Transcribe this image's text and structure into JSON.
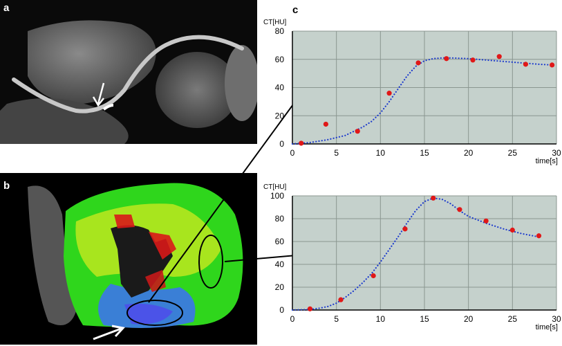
{
  "panels": {
    "a": {
      "label": "a"
    },
    "b": {
      "label": "b"
    },
    "c": {
      "label": "c"
    }
  },
  "colors": {
    "plot_bg": "#c5d1cc",
    "grid": "#8a9690",
    "curve": "#1e3ccc",
    "points": "#e01818",
    "arrow": "#000000"
  },
  "chart_data": [
    {
      "type": "scatter",
      "title": "",
      "ylabel": "CT[HU]",
      "xlabel": "time[s]",
      "xlim": [
        0,
        30
      ],
      "ylim": [
        0,
        80
      ],
      "xticks": [
        0,
        5,
        10,
        15,
        20,
        25,
        30
      ],
      "yticks": [
        0,
        20,
        40,
        60,
        80
      ],
      "grid": true,
      "series": [
        {
          "style": "red-dots",
          "x": [
            1,
            3.8,
            7.4,
            11,
            14.3,
            17.5,
            20.5,
            23.5,
            26.5,
            29.5
          ],
          "y": [
            0.5,
            14,
            9,
            36,
            57.5,
            60.5,
            59.5,
            62,
            56.5,
            56
          ]
        },
        {
          "style": "blue-dotted-fit",
          "x": [
            0,
            2,
            4,
            6,
            8,
            9,
            10,
            11,
            12,
            13,
            14,
            15,
            16,
            17,
            18,
            20,
            22,
            24,
            26,
            28,
            29.5
          ],
          "y": [
            0,
            1,
            3,
            6,
            12,
            16,
            22,
            30,
            39,
            48,
            55,
            59,
            60.5,
            61,
            61,
            60.5,
            59.5,
            58.5,
            57.5,
            56.5,
            56
          ]
        }
      ]
    },
    {
      "type": "scatter",
      "title": "",
      "ylabel": "CT[HU]",
      "xlabel": "time[s]",
      "xlim": [
        0,
        30
      ],
      "ylim": [
        0,
        100
      ],
      "xticks": [
        0,
        5,
        10,
        15,
        20,
        25,
        30
      ],
      "yticks": [
        0,
        20,
        40,
        60,
        80,
        100
      ],
      "grid": true,
      "series": [
        {
          "style": "red-dots",
          "x": [
            2,
            5.5,
            9.2,
            12.8,
            16,
            19,
            22,
            25,
            28
          ],
          "y": [
            1,
            9,
            30,
            71,
            98,
            88,
            78,
            70,
            65
          ]
        },
        {
          "style": "blue-dotted-fit",
          "x": [
            0,
            2,
            3,
            4,
            5,
            6,
            7,
            8,
            9,
            10,
            11,
            12,
            13,
            14,
            15,
            16,
            17,
            18,
            19,
            20,
            22,
            24,
            26,
            28
          ],
          "y": [
            0,
            0.5,
            1.5,
            3,
            6,
            11,
            17,
            24,
            32,
            42,
            53,
            64,
            76,
            87,
            95,
            98,
            97,
            93,
            87,
            82,
            76,
            71,
            67,
            64
          ]
        }
      ]
    }
  ]
}
